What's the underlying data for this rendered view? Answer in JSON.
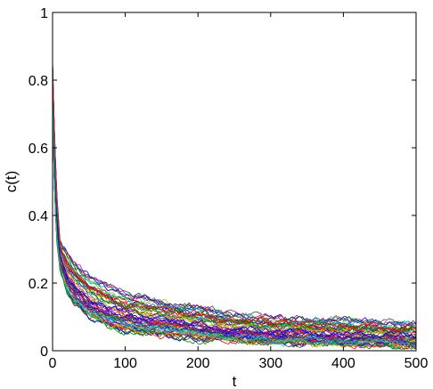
{
  "chart_data": {
    "type": "line",
    "title": "",
    "xlabel": "t",
    "ylabel": "c(t)",
    "xlim": [
      0,
      500
    ],
    "ylim": [
      0,
      1
    ],
    "xticks": [
      0,
      100,
      200,
      300,
      400,
      500
    ],
    "yticks": [
      0,
      0.2,
      0.4,
      0.6,
      0.8,
      1
    ],
    "xtick_labels": [
      "0",
      "100",
      "200",
      "300",
      "400",
      "500"
    ],
    "ytick_labels": [
      "0",
      "0.2",
      "0.4",
      "0.6",
      "0.8",
      "1"
    ],
    "grid": false,
    "legend": false,
    "series_count": 60,
    "series_colors": [
      "#0000ff",
      "#008000",
      "#ff0000",
      "#00bfbf",
      "#bf00bf",
      "#bfbf00",
      "#404040"
    ],
    "envelope": {
      "x": [
        0,
        2,
        5,
        10,
        20,
        30,
        50,
        75,
        100,
        150,
        200,
        250,
        300,
        350,
        400,
        450,
        500
      ],
      "upper": [
        0.86,
        0.7,
        0.5,
        0.33,
        0.29,
        0.26,
        0.22,
        0.19,
        0.17,
        0.15,
        0.13,
        0.11,
        0.1,
        0.095,
        0.09,
        0.085,
        0.08
      ],
      "lower": [
        0.75,
        0.52,
        0.34,
        0.24,
        0.17,
        0.14,
        0.1,
        0.075,
        0.06,
        0.045,
        0.035,
        0.028,
        0.022,
        0.02,
        0.018,
        0.017,
        0.015
      ]
    }
  }
}
